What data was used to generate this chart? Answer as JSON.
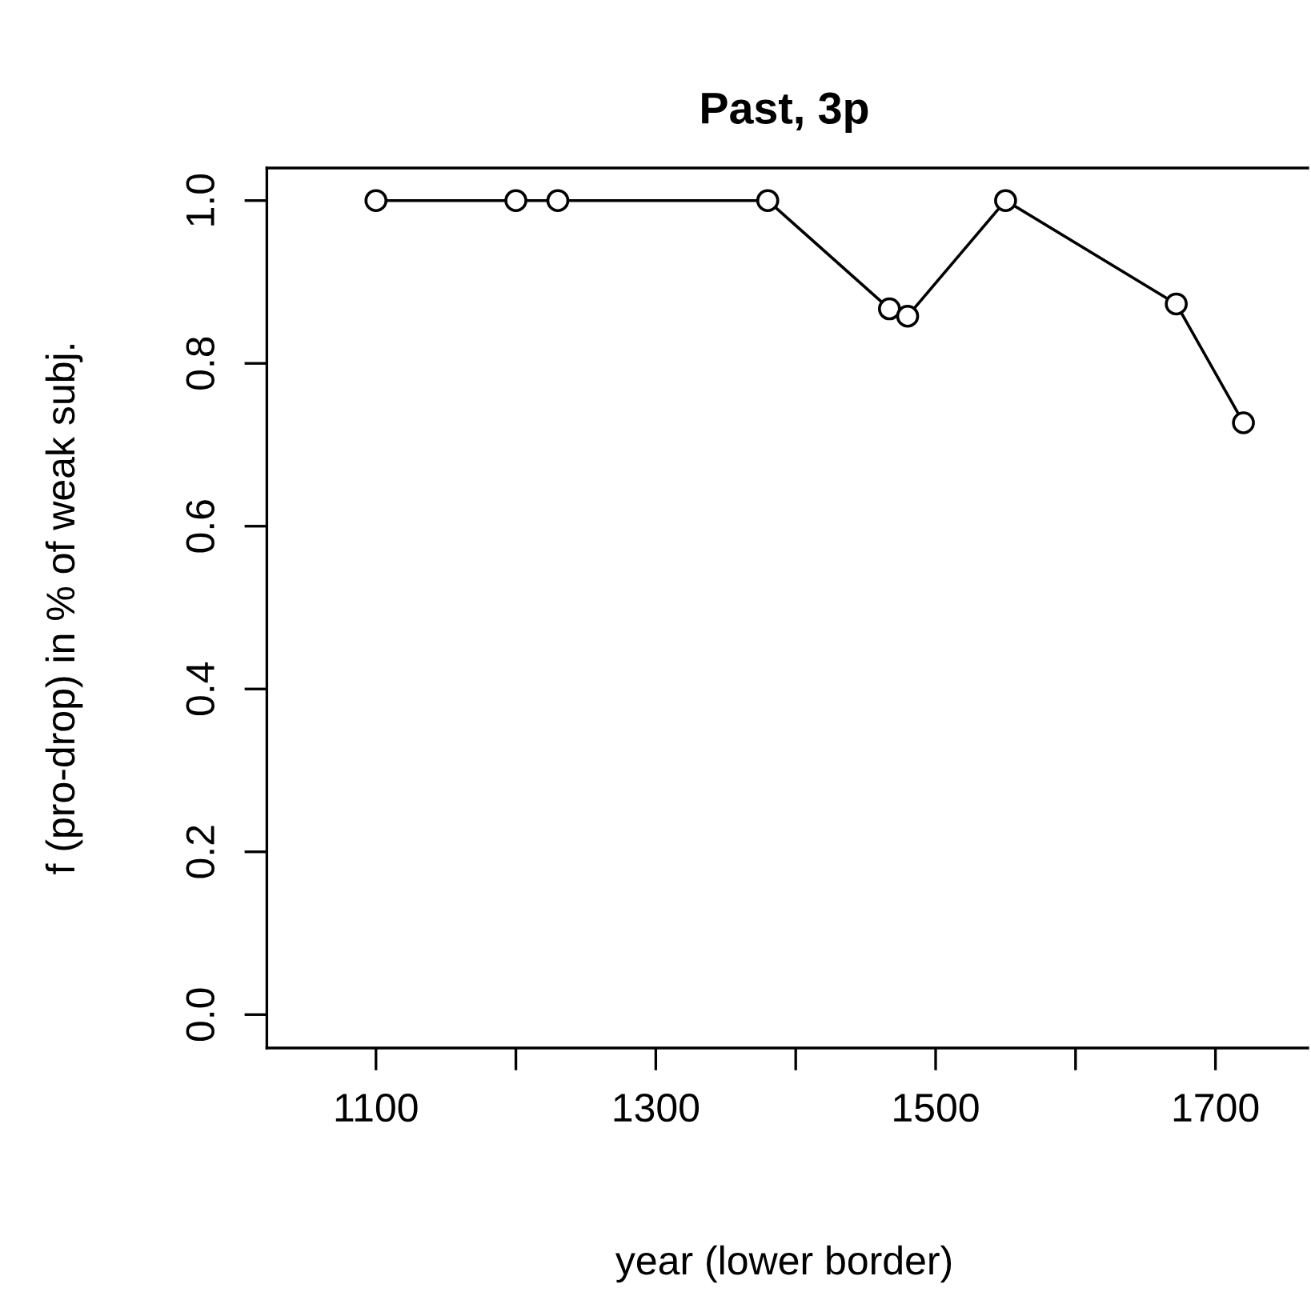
{
  "chart_data": {
    "type": "line",
    "title": "Past, 3p",
    "xlabel": "year (lower border)",
    "ylabel": "f (pro-drop) in % of weak subj.",
    "x": [
      1100,
      1200,
      1230,
      1380,
      1467,
      1480,
      1550,
      1672,
      1720
    ],
    "series": [
      {
        "color": "#000000",
        "values": [
          1.0,
          1.0,
          1.0,
          1.0,
          0.867,
          0.858,
          1.0,
          0.873,
          0.727
        ]
      }
    ],
    "marker": "circle",
    "line_style": "solid",
    "grid": false,
    "legend": false,
    "xlim": [
      1022,
      1766
    ],
    "ylim": [
      -0.041,
      1.04
    ],
    "xticks": [
      1100,
      {
        "value": 1200,
        "label": null
      },
      1300,
      {
        "value": 1400,
        "label": null
      },
      1500,
      {
        "value": 1600,
        "label": null
      },
      1700
    ],
    "yticks": [
      {
        "value": 0.0,
        "label": "0.0"
      },
      0.2,
      0.4,
      0.6,
      0.8,
      {
        "value": 1.0,
        "label": "1.0"
      }
    ]
  }
}
